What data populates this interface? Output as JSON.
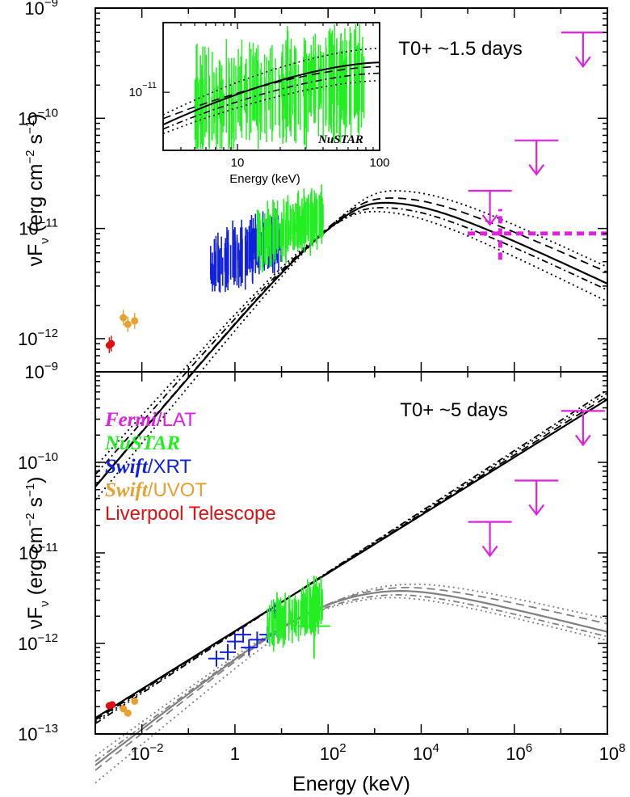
{
  "chart_data": [
    {
      "type": "scatter",
      "panel": "top",
      "annotation": "T0+ ~1.5 days",
      "xlabel": "",
      "ylabel": "νF",
      "ylabel_sub": "ν",
      "ylabel_units": "(erg cm",
      "ylabel_units_exp1": "−2",
      "ylabel_units_mid": " s",
      "ylabel_units_exp2": "−1",
      "ylabel_units_end": ")",
      "xscale": "log",
      "yscale": "log",
      "xlim": [
        0.001,
        100000000
      ],
      "ylim": [
        5e-13,
        1e-09
      ],
      "ytick_labels": [
        {
          "base": "10",
          "exp": "−9",
          "value": 1e-09
        },
        {
          "base": "10",
          "exp": "−10",
          "value": 1e-10
        },
        {
          "base": "10",
          "exp": "−11",
          "value": 1e-11
        },
        {
          "base": "10",
          "exp": "−12",
          "value": 1e-12
        }
      ],
      "upper_limits": [
        {
          "x": 300000,
          "y": 2.2e-11,
          "color": "#e020e0"
        },
        {
          "x": 3000000,
          "y": 6.3e-11,
          "color": "#e020e0"
        },
        {
          "x": 30000000,
          "y": 6e-10,
          "color": "#e020e0"
        }
      ],
      "detection": {
        "x": 500000,
        "y": 9e-12,
        "xerr": [
          100000,
          100000000
        ],
        "yerr": [
          5.2e-12,
          1.5e-11
        ],
        "color": "#e020e0"
      },
      "series": [
        {
          "name": "Liverpool Telescope",
          "color": "#dd1111",
          "points": [
            {
              "x": 0.002,
              "y": 8.7e-13
            },
            {
              "x": 0.0022,
              "y": 9e-13
            }
          ]
        },
        {
          "name": "Swift/UVOT",
          "color": "#e8a030",
          "points": [
            {
              "x": 0.004,
              "y": 1.55e-12
            },
            {
              "x": 0.005,
              "y": 1.35e-12
            },
            {
              "x": 0.007,
              "y": 1.45e-12
            }
          ]
        },
        {
          "name": "Swift/XRT",
          "color": "#1020dd",
          "band": [
            0.3,
            10
          ],
          "y_at_low": 4.3e-12,
          "y_at_high": 8.5e-12
        },
        {
          "name": "NuSTAR",
          "color": "#22ee22",
          "band": [
            3,
            79
          ],
          "y_at_low": 7.5e-12,
          "y_at_high": 1.3e-11
        }
      ],
      "models": [
        {
          "style": "solid",
          "low_slope": 0.5,
          "peak_x": 600,
          "peak_y": 1.6e-11,
          "high_slope": -0.2,
          "anchor_x": 0.002,
          "anchor_y": 9.2e-13
        },
        {
          "style": "dashed",
          "low_slope": 0.5,
          "peak_x": 700,
          "peak_y": 1.75e-11,
          "high_slope": -0.19
        },
        {
          "style": "dotted",
          "low_slope": 0.52,
          "peak_x": 1000,
          "peak_y": 2.05e-11,
          "high_slope": -0.2
        },
        {
          "style": "dotted",
          "low_slope": 0.47,
          "peak_x": 400,
          "peak_y": 1.35e-11,
          "high_slope": -0.21
        },
        {
          "style": "dashdot",
          "low_slope": 0.48,
          "peak_x": 500,
          "peak_y": 1.45e-11,
          "high_slope": -0.2
        }
      ],
      "inset": {
        "xlabel": "Energy (keV)",
        "xtick_labels": [
          {
            "text": "10",
            "value": 10
          },
          {
            "text": "100",
            "value": 100
          }
        ],
        "ytick_labels": [
          {
            "base": "10",
            "exp": "−11",
            "value": 1e-11
          }
        ],
        "xlim": [
          3,
          100
        ],
        "ylim": [
          4e-12,
          3e-11
        ],
        "caption": "NuSTAR",
        "data_color": "#22ee22"
      }
    },
    {
      "type": "scatter",
      "panel": "bottom",
      "annotation": "T0+ ~5 days",
      "xlabel": "Energy (keV)",
      "ylabel": "νF",
      "ylabel_sub": "ν",
      "ylabel_units": "(erg cm",
      "ylabel_units_exp1": "−2",
      "ylabel_units_mid": " s",
      "ylabel_units_exp2": "−1",
      "ylabel_units_end": ")",
      "xscale": "log",
      "yscale": "log",
      "xlim": [
        0.001,
        100000000
      ],
      "ylim": [
        1e-13,
        1e-09
      ],
      "xtick_labels": [
        {
          "base": "10",
          "exp": "−2",
          "value": 0.01
        },
        {
          "base": "1",
          "exp": "",
          "value": 1
        },
        {
          "base": "10",
          "exp": "2",
          "value": 100
        },
        {
          "base": "10",
          "exp": "4",
          "value": 10000
        },
        {
          "base": "10",
          "exp": "6",
          "value": 1000000
        },
        {
          "base": "10",
          "exp": "8",
          "value": 100000000
        }
      ],
      "ytick_labels": [
        {
          "base": "10",
          "exp": "−9",
          "value": 1e-09
        },
        {
          "base": "10",
          "exp": "−10",
          "value": 1e-10
        },
        {
          "base": "10",
          "exp": "−11",
          "value": 1e-11
        },
        {
          "base": "10",
          "exp": "−12",
          "value": 1e-12
        },
        {
          "base": "10",
          "exp": "−13",
          "value": 1e-13
        }
      ],
      "legend": [
        {
          "prefix": "Fermi",
          "suffix": "/LAT",
          "color": "#e020e0"
        },
        {
          "prefix": "NuSTAR",
          "suffix": "",
          "color": "#22ee22"
        },
        {
          "prefix": "Swift",
          "suffix": "/XRT",
          "color": "#1020dd"
        },
        {
          "prefix": "Swift",
          "suffix": "/UVOT",
          "color": "#e8a030"
        },
        {
          "prefix": "",
          "suffix": "Liverpool Telescope",
          "color": "#dd1111"
        }
      ],
      "legend_placement": "top-left",
      "upper_limits": [
        {
          "x": 300000,
          "y": 2.2e-11,
          "color": "#e020e0"
        },
        {
          "x": 3000000,
          "y": 6.3e-11,
          "color": "#e020e0"
        },
        {
          "x": 30000000,
          "y": 3.7e-10,
          "color": "#e020e0"
        }
      ],
      "series": [
        {
          "name": "Liverpool Telescope",
          "color": "#dd1111",
          "points": [
            {
              "x": 0.002,
              "y": 2.05e-13
            },
            {
              "x": 0.0023,
              "y": 2.1e-13
            }
          ]
        },
        {
          "name": "Swift/UVOT",
          "color": "#e8a030",
          "points": [
            {
              "x": 0.004,
              "y": 1.9e-13
            },
            {
              "x": 0.005,
              "y": 1.7e-13
            },
            {
              "x": 0.007,
              "y": 2.3e-13
            }
          ]
        },
        {
          "name": "Swift/XRT",
          "color": "#1020dd",
          "points": [
            {
              "x": 0.4,
              "y": 6.8e-13
            },
            {
              "x": 0.7,
              "y": 8e-13
            },
            {
              "x": 1,
              "y": 1.05e-12
            },
            {
              "x": 1.5,
              "y": 1.25e-12
            },
            {
              "x": 2,
              "y": 9e-13
            },
            {
              "x": 3,
              "y": 1.1e-12
            },
            {
              "x": 5,
              "y": 1.25e-12
            },
            {
              "x": 7,
              "y": 2.3e-12
            }
          ]
        },
        {
          "name": "NuSTAR",
          "color": "#22ee22",
          "band": [
            5,
            79
          ],
          "y_at_low": 1.6e-12,
          "y_at_high": 2.7e-12
        }
      ],
      "models": [
        {
          "style": "solid",
          "color": "#000000",
          "power_law": true,
          "slope": 0.32,
          "anchor_x": 0.001,
          "anchor_y": 1.5e-13
        },
        {
          "style": "dashed",
          "color": "#000000",
          "power_law": true,
          "slope": 0.325,
          "anchor_x": 0.001,
          "anchor_y": 1.43e-13
        },
        {
          "style": "dotted",
          "color": "#000000",
          "power_law": true,
          "slope": 0.33,
          "anchor_x": 0.001,
          "anchor_y": 1.37e-13
        },
        {
          "style": "dashdot",
          "color": "#000000",
          "power_law": true,
          "slope": 0.335,
          "anchor_x": 0.001,
          "anchor_y": 1.3e-13
        },
        {
          "style": "solid",
          "color": "#808080",
          "low_slope": 0.4,
          "peak_x": 300,
          "peak_y": 3.2e-12,
          "high_slope": -0.13
        },
        {
          "style": "dashed",
          "color": "#808080",
          "low_slope": 0.41,
          "peak_x": 350,
          "peak_y": 3.4e-12,
          "high_slope": -0.12
        },
        {
          "style": "dotted",
          "color": "#808080",
          "low_slope": 0.43,
          "peak_x": 500,
          "peak_y": 3.7e-12,
          "high_slope": -0.12
        },
        {
          "style": "dotted",
          "color": "#808080",
          "low_slope": 0.38,
          "peak_x": 200,
          "peak_y": 2.7e-12,
          "high_slope": -0.13
        },
        {
          "style": "dashdot",
          "color": "#808080",
          "low_slope": 0.39,
          "peak_x": 250,
          "peak_y": 2.9e-12,
          "high_slope": -0.13
        }
      ]
    }
  ]
}
